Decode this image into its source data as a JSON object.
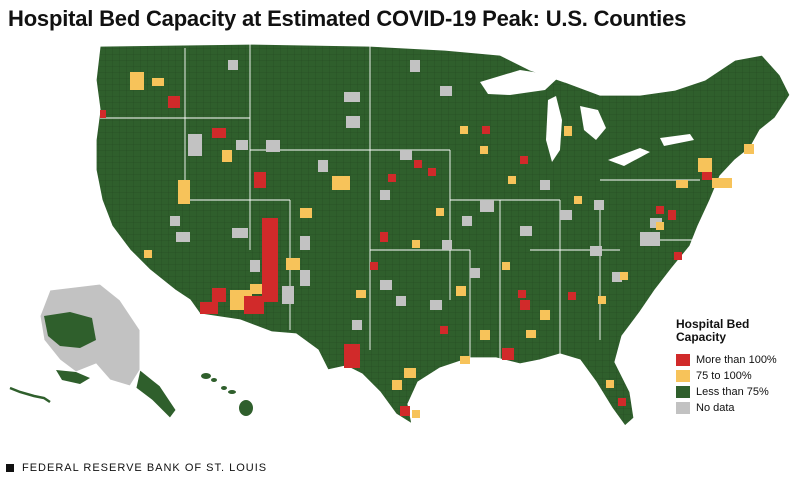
{
  "title": "Hospital Bed Capacity at Estimated COVID-19 Peak: U.S. Counties",
  "legend": {
    "title": "Hospital Bed Capacity",
    "items": [
      {
        "label": "More than 100%",
        "color": "#d12a2a"
      },
      {
        "label": "75 to 100%",
        "color": "#f7c35a"
      },
      {
        "label": "Less than 75%",
        "color": "#2f5f2c"
      },
      {
        "label": "No data",
        "color": "#c2c2c2"
      }
    ]
  },
  "colors": {
    "county_border": "#1f3d1c",
    "state_border": "#ffffff"
  },
  "footer": {
    "source": "FEDERAL RESERVE BANK OF ST. LOUIS"
  }
}
